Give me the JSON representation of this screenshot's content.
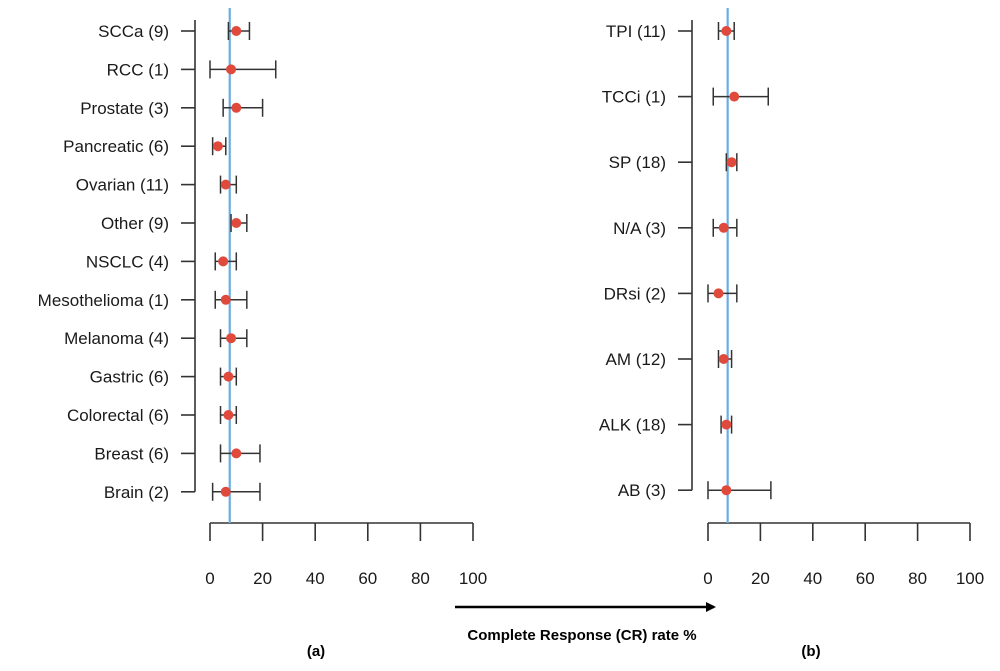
{
  "chart_data": [
    {
      "type": "scatter",
      "panel_label": "(a)",
      "categories": [
        "SCCa (9)",
        "RCC (1)",
        "Prostate (3)",
        "Pancreatic (6)",
        "Ovarian (11)",
        "Other (9)",
        "NSCLC (4)",
        "Mesothelioma (1)",
        "Melanoma (4)",
        "Gastric (6)",
        "Colorectal (6)",
        "Breast (6)",
        "Brain (2)"
      ],
      "estimate": [
        10,
        8,
        10,
        3,
        6,
        10,
        5,
        6,
        8,
        7,
        7,
        10,
        6
      ],
      "ci_low": [
        7,
        0,
        5,
        1,
        4,
        8,
        2,
        2,
        4,
        4,
        4,
        4,
        1
      ],
      "ci_high": [
        15,
        25,
        20,
        6,
        10,
        14,
        10,
        14,
        14,
        10,
        10,
        19,
        19
      ],
      "xlim": [
        0,
        100
      ],
      "xticks": [
        0,
        20,
        40,
        60,
        80,
        100
      ],
      "xtick_labels": [
        "0",
        "20",
        "40",
        "60",
        "80",
        "100"
      ],
      "reference_line": 7.5,
      "xlabel": "",
      "ylabel": ""
    },
    {
      "type": "scatter",
      "panel_label": "(b)",
      "categories": [
        "TPI (11)",
        "TCCi (1)",
        "SP (18)",
        "N/A (3)",
        "DRsi (2)",
        "AM (12)",
        "ALK (18)",
        "AB (3)"
      ],
      "estimate": [
        7,
        10,
        9,
        6,
        4,
        6,
        7,
        7
      ],
      "ci_low": [
        4,
        2,
        7,
        2,
        0,
        4,
        5,
        0
      ],
      "ci_high": [
        10,
        23,
        11,
        11,
        11,
        9,
        9,
        24
      ],
      "xlim": [
        0,
        100
      ],
      "xticks": [
        0,
        20,
        40,
        60,
        80,
        100
      ],
      "xtick_labels": [
        "0",
        "20",
        "40",
        "60",
        "80",
        "100"
      ],
      "reference_line": 7.5,
      "xlabel": "",
      "ylabel": ""
    }
  ],
  "x_axis_title": "Complete Response (CR) rate %",
  "colors": {
    "point": "#e04a3c",
    "reference_line": "#6aaee0",
    "axis": "#333333",
    "arrow": "#000000"
  }
}
